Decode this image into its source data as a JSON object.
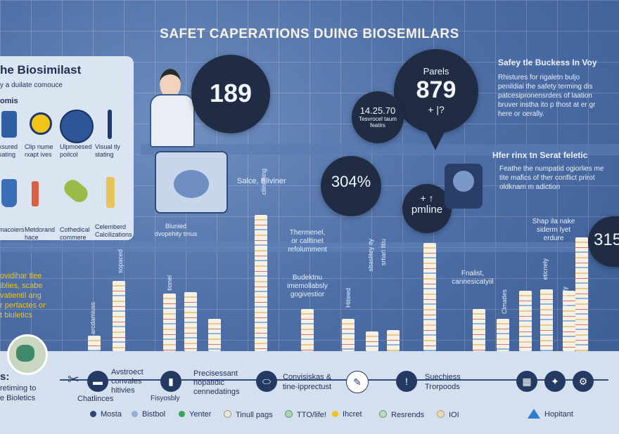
{
  "title": "SAFET CAPERATIONS DUING BIOSEMILARS",
  "left_panel": {
    "heading": "he Biosimilast",
    "subheading": "y a duilate comouce",
    "section": "omis",
    "icon_labels": [
      "xsured\nsating",
      "Clip nume\nrxapt ives",
      "Ulpmoesed\npoilcol",
      "Visual tly\nstating",
      "macoiers",
      "Metdorand\nhace",
      "Cothedical\ncommere",
      "Celemberd\nCalcilizations"
    ]
  },
  "badges": {
    "b189": "189",
    "b879_label": "Parels",
    "b879": "879",
    "b879_sub": "+ |?",
    "b1425": "14.25.70",
    "b1425_sub": "Tesvrocel taum\nfeatirs",
    "b304": "304%",
    "bpm_top": "+ ↑",
    "bpm": "pmline",
    "b315": "315"
  },
  "right_text": {
    "h1": "Safey tle Buckess In Voy",
    "p1": "Rhistures for rigaletn buljo\npenildiai the safety terming dis\npatcesipronensrders of laation\nbruver instha ito p thost at er gr\nhere or oerally.",
    "h2": "Hfer rinx tn Serat feletic",
    "p2": "Feathe the numpatid ogiorlies me\ntite mafics of ther conflict prirot\noldknam m adiction",
    "mid_right": "Shap ila nake\nsiderm lyet\nerdure"
  },
  "annotations": {
    "salce": "Salce, Bliviner",
    "blunied": "Blunied\ndvopehity tmus",
    "thermenel": "Thermenel,\nor calltinet\nrefolumment",
    "budektnu": "Budektnu\nimemollabsly\ngogivestior",
    "finalist": "Fnalist,\ncannesicatyiil",
    "left_mid": "ovidihar tlee\niblies, scabe\nvatientil ang\nr pertactes or\nt biuletics"
  },
  "bar_labels": [
    "arcdamiuss",
    "sopaced",
    "tionel",
    "cllinnhing",
    "sbaslitey ity",
    "Hitieed",
    "srtiarl lltiu",
    "Clmatles",
    "eticnely",
    "exisulty"
  ],
  "bottom": {
    "left_title": "s:",
    "left_text": "retiming to\ne Bioletics",
    "item1_small": "Chatlinces",
    "item1": "Avstroect\nconvales\nhitivies",
    "item2_small": "Fisyosbly",
    "item2": "Precisessant\nnopatidic\ncennedatings",
    "item3": "Convisiskas &\ntine-ipprectust",
    "item4": "Suechiess\nTrorpoods"
  },
  "legend": [
    {
      "label": "Mosta",
      "color": "#2c4576"
    },
    {
      "label": "Bistbol",
      "color": "#8fb0dc"
    },
    {
      "label": "Yenter",
      "color": "#3aa35b"
    },
    {
      "label": "Tinull pags",
      "color": "#e8e4d6"
    },
    {
      "label": "TTO/life!",
      "color": "#a8d4b5"
    },
    {
      "label": "Ihcret",
      "color": "#f2c417"
    },
    {
      "label": "Resrends",
      "color": "#b9dcc2"
    },
    {
      "label": "IOI",
      "color": "#ead9b4"
    }
  ],
  "hopitant": "Hopitant"
}
